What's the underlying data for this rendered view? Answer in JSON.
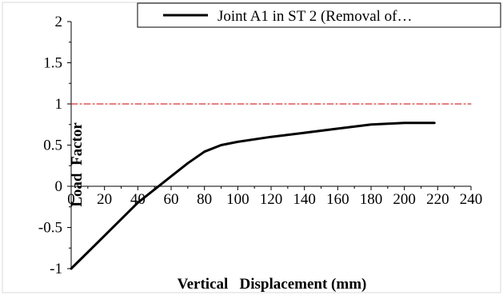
{
  "chart_data": {
    "type": "line",
    "title": "",
    "xlabel": "Vertical   Displacement (mm)",
    "ylabel": "Load  Factor",
    "xlim": [
      0,
      240
    ],
    "ylim": [
      -1,
      2
    ],
    "x_ticks": [
      0,
      20,
      40,
      60,
      80,
      100,
      120,
      140,
      160,
      180,
      200,
      220,
      240
    ],
    "y_ticks": [
      -1,
      -0.5,
      0,
      0.5,
      1,
      1.5,
      2
    ],
    "x_tick_labels": [
      "0",
      "20",
      "40",
      "60",
      "80",
      "100",
      "120",
      "140",
      "160",
      "180",
      "200",
      "220",
      "240"
    ],
    "y_tick_labels": [
      "-1",
      "-0.5",
      "0",
      "0.5",
      "1",
      "1.5",
      "2"
    ],
    "grid": false,
    "legend_position": "top-right",
    "series": [
      {
        "name": "Joint  A1 in ST 2  (Removal of…",
        "color": "#000000",
        "style": "solid",
        "x": [
          0,
          20,
          40,
          60,
          70,
          80,
          90,
          100,
          120,
          140,
          160,
          180,
          200,
          218
        ],
        "y": [
          -1.0,
          -0.6,
          -0.2,
          0.12,
          0.28,
          0.42,
          0.5,
          0.54,
          0.6,
          0.65,
          0.7,
          0.75,
          0.77,
          0.77
        ]
      },
      {
        "color": "#cc0000",
        "style": "dashdot",
        "x": [
          0,
          240
        ],
        "y": [
          1.0,
          1.0
        ]
      }
    ]
  }
}
